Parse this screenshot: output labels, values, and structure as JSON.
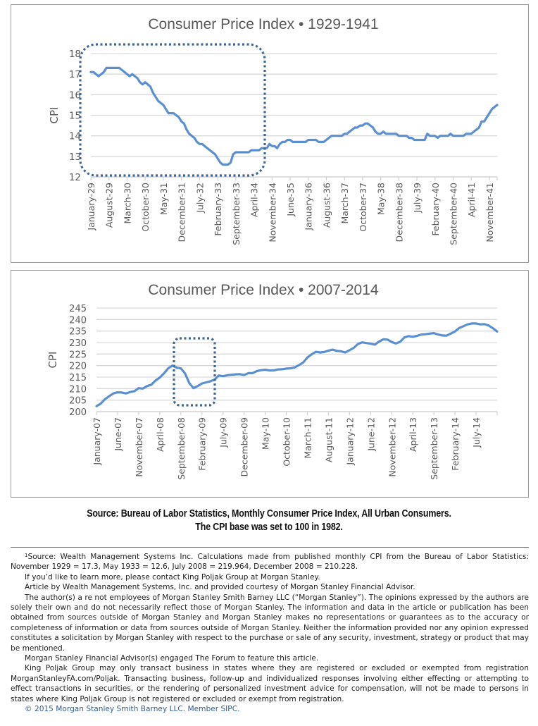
{
  "chart_data": [
    {
      "type": "line",
      "title": "Consumer Price Index • 1929-1941",
      "xlabel": "",
      "ylabel": "CPI",
      "ylim": [
        12,
        18
      ],
      "yticks": [
        12,
        13,
        14,
        15,
        16,
        17,
        18
      ],
      "grid": true,
      "legend": "none",
      "xtick_labels": [
        "January-29",
        "August-29",
        "March-30",
        "October-30",
        "May-31",
        "December-31",
        "July-32",
        "February-33",
        "September-33",
        "April-34",
        "November-34",
        "June-35",
        "January-36",
        "August-36",
        "March-37",
        "October-37",
        "May-38",
        "December-38",
        "July-39",
        "February-40",
        "September-40",
        "April-41",
        "November-41"
      ],
      "x_start": "January-1929",
      "x_end": "December-1941",
      "series": [
        {
          "name": "CPI",
          "color": "#5b8fd0",
          "values": [
            17.1,
            17.1,
            17.0,
            16.9,
            17.0,
            17.1,
            17.3,
            17.3,
            17.3,
            17.3,
            17.3,
            17.3,
            17.2,
            17.1,
            17.0,
            16.9,
            17.0,
            16.9,
            16.8,
            16.6,
            16.5,
            16.6,
            16.5,
            16.4,
            16.1,
            15.9,
            15.7,
            15.6,
            15.5,
            15.3,
            15.1,
            15.1,
            15.1,
            15.0,
            14.9,
            14.7,
            14.6,
            14.3,
            14.1,
            14.0,
            13.9,
            13.7,
            13.6,
            13.6,
            13.5,
            13.4,
            13.3,
            13.2,
            13.1,
            12.9,
            12.7,
            12.6,
            12.6,
            12.6,
            12.7,
            13.1,
            13.2,
            13.2,
            13.2,
            13.2,
            13.2,
            13.2,
            13.3,
            13.3,
            13.3,
            13.3,
            13.4,
            13.4,
            13.4,
            13.6,
            13.5,
            13.5,
            13.4,
            13.6,
            13.7,
            13.7,
            13.8,
            13.8,
            13.7,
            13.7,
            13.7,
            13.7,
            13.7,
            13.7,
            13.8,
            13.8,
            13.8,
            13.8,
            13.7,
            13.7,
            13.7,
            13.8,
            13.9,
            14.0,
            14.0,
            14.0,
            14.0,
            14.0,
            14.1,
            14.1,
            14.2,
            14.3,
            14.4,
            14.4,
            14.5,
            14.5,
            14.6,
            14.6,
            14.5,
            14.4,
            14.2,
            14.1,
            14.1,
            14.2,
            14.1,
            14.1,
            14.1,
            14.1,
            14.1,
            14.0,
            14.0,
            14.0,
            14.0,
            13.9,
            13.9,
            13.8,
            13.8,
            13.8,
            13.8,
            13.8,
            14.1,
            14.0,
            14.0,
            14.0,
            13.9,
            14.0,
            14.0,
            14.0,
            14.0,
            14.1,
            14.0,
            14.0,
            14.0,
            14.0,
            14.0,
            14.1,
            14.1,
            14.1,
            14.2,
            14.3,
            14.4,
            14.7,
            14.7,
            14.9,
            15.1,
            15.3,
            15.4,
            15.5
          ]
        }
      ],
      "annotation": "Dotted rounded box highlighting January-29 to mid-1934 decline"
    },
    {
      "type": "line",
      "title": "Consumer Price Index • 2007-2014",
      "xlabel": "",
      "ylabel": "CPI",
      "ylim": [
        200,
        245
      ],
      "yticks": [
        200,
        205,
        210,
        215,
        220,
        225,
        230,
        235,
        240,
        245
      ],
      "grid": true,
      "legend": "none",
      "xtick_labels": [
        "January-07",
        "June-07",
        "November-07",
        "April-08",
        "September-08",
        "February-09",
        "July-09",
        "December-09",
        "May-10",
        "October-10",
        "March-11",
        "August-11",
        "January-12",
        "June-12",
        "November-12",
        "April-13",
        "September-13",
        "February-14",
        "July-14"
      ],
      "x_start": "January-2007",
      "x_end": "December-2014",
      "series": [
        {
          "name": "CPI",
          "color": "#5b8fd0",
          "values": [
            202.4,
            203.5,
            205.4,
            206.7,
            207.9,
            208.4,
            208.3,
            207.9,
            208.5,
            208.9,
            210.2,
            210.0,
            211.1,
            211.7,
            213.5,
            214.8,
            216.6,
            218.8,
            220.0,
            219.1,
            218.8,
            216.6,
            212.4,
            210.2,
            211.1,
            212.2,
            212.7,
            213.2,
            213.9,
            215.7,
            215.4,
            215.8,
            216.0,
            216.2,
            216.3,
            215.9,
            216.7,
            216.7,
            217.6,
            218.0,
            218.2,
            217.9,
            217.9,
            218.3,
            218.4,
            218.7,
            218.8,
            219.2,
            220.2,
            221.3,
            223.5,
            224.9,
            226.0,
            225.7,
            225.9,
            226.5,
            226.9,
            226.4,
            226.2,
            225.7,
            226.7,
            227.7,
            229.4,
            230.1,
            229.8,
            229.5,
            229.1,
            230.4,
            231.4,
            231.3,
            230.2,
            229.6,
            230.3,
            232.2,
            232.8,
            232.5,
            232.9,
            233.5,
            233.6,
            233.9,
            234.1,
            233.5,
            233.1,
            233.0,
            233.9,
            234.8,
            236.3,
            237.1,
            237.9,
            238.3,
            238.3,
            237.9,
            238.0,
            237.4,
            236.2,
            234.8
          ]
        }
      ],
      "annotation": "Dotted rounded box highlighting mid-2008 peak and drop"
    }
  ],
  "source_note": {
    "line1": "Source: Bureau of Labor Statistics, Monthly Consumer Price Index, All Urban Consumers.",
    "line2": "The CPI base was set to 100 in 1982."
  },
  "footnotes": {
    "sup": "1",
    "p1": "Source: Wealth Management Systems Inc. Calculations made from published monthly CPI from the Bureau of Labor Statistics: November 1929 = 17.3, May 1933 = 12.6, July 2008 = 219.964, December 2008 = 210.228.",
    "p2": "If you’d like to learn more, please contact King Poljak Group at Morgan Stanley.",
    "p3": "Article by Wealth Management Systems, Inc. and provided courtesy of Morgan Stanley Financial Advisor.",
    "p4": "The author(s) a re not employees of Morgan Stanley Smith Barney LLC (“Morgan Stanley”). The opinions expressed by the authors are solely their own and do not necessarily reflect those of Morgan Stanley. The information and data in the article or publication has been obtained from sources outside of Morgan Stanley and Morgan Stanley makes no representations or guarantees as to the accuracy or completeness of information or data from sources outside of Morgan Stanley. Neither the information provided nor any opinion expressed constitutes a solicitation by Morgan Stanley with respect to the purchase or sale of any security, investment, strategy or product that may be mentioned.",
    "p5": "Morgan Stanley Financial Advisor(s) engaged The Forum to feature this article.",
    "p6": "King Poljak Group may only transact business in states where they are registered or excluded or exempted from registration MorganStanleyFA.com/Poljak. Transacting business, follow-up and individualized responses involving either effecting or attempting to effect transactions in securities, or the rendering of personalized investment advice for compensation, will not be made to persons in states where King Poljak Group is not registered or excluded or exempt from registration.",
    "copyright": "© 2015 Morgan Stanley Smith Barney LLC. Member SIPC."
  },
  "highlight_color": "#3d6596"
}
